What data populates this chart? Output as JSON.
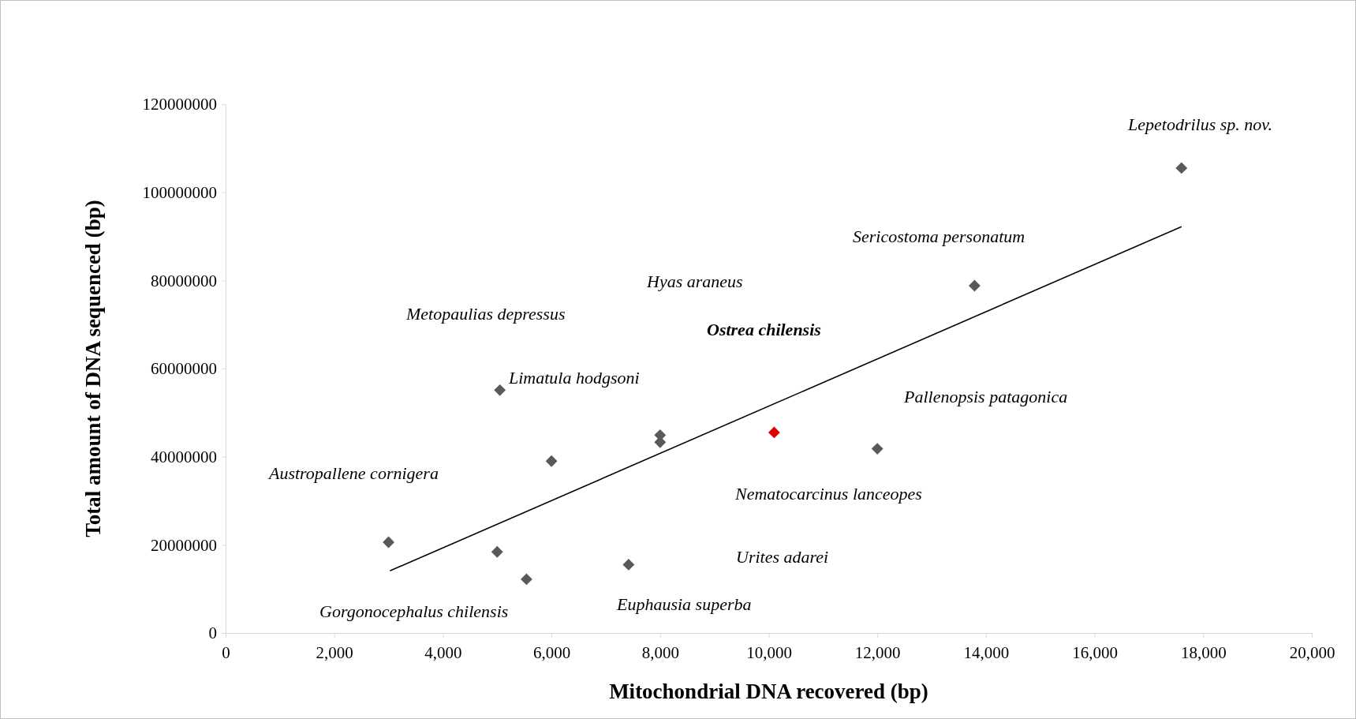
{
  "chart_data": {
    "type": "scatter",
    "xlabel": "Mitochondrial DNA recovered (bp)",
    "ylabel": "Total amount of DNA sequenced (bp)",
    "xlim": [
      0,
      20000
    ],
    "xticks": [
      0,
      {
        "value": 2000,
        "label": "2,000"
      },
      {
        "value": 4000,
        "label": "4,000"
      },
      {
        "value": 6000,
        "label": "6,000"
      },
      {
        "value": 8000,
        "label": "8,000"
      },
      {
        "value": 10000,
        "label": "10,000"
      },
      {
        "value": 12000,
        "label": "12,000"
      },
      {
        "value": 14000,
        "label": "14,000"
      },
      {
        "value": 16000,
        "label": "16,000"
      },
      {
        "value": 18000,
        "label": "18,000"
      },
      {
        "value": 20000,
        "label": "20,000"
      }
    ],
    "ylim": [
      0,
      120000000
    ],
    "yticks": [
      0,
      20000000,
      40000000,
      60000000,
      80000000,
      100000000,
      120000000
    ],
    "grid": false,
    "marker": "diamond",
    "series": [
      {
        "x": [
          3000,
          5000,
          5050,
          5540,
          6000,
          7420,
          8000,
          8000,
          10100,
          12000,
          13790,
          17600
        ],
        "values": [
          20600000,
          18400000,
          55100000,
          12200000,
          39000000,
          15500000,
          44900000,
          43300000,
          45500000,
          41800000,
          78800000,
          105500000
        ],
        "colors": [
          "#595959",
          "#595959",
          "#595959",
          "#595959",
          "#595959",
          "#595959",
          "#595959",
          "#595959",
          "#e00000",
          "#595959",
          "#595959",
          "#595959"
        ]
      },
      {
        "type": "line",
        "x": [
          3025,
          17600
        ],
        "values": [
          14100000,
          92200000
        ],
        "color": "#000000",
        "marker": "none",
        "line_style": "solid"
      }
    ],
    "annotations": [
      "Lepetodrilus sp. nov.",
      "Sericostoma personatum",
      "Hyas araneus",
      "Metopaulias depressus",
      "Ostrea chilensis",
      "Limatula hodgsoni",
      "Pallenopsis patagonica",
      "Austropallene cornigera",
      "Nematocarcinus lanceopes",
      "Urites adarei",
      "Gorgonocephalus chilensis",
      "Euphausia superba"
    ]
  }
}
